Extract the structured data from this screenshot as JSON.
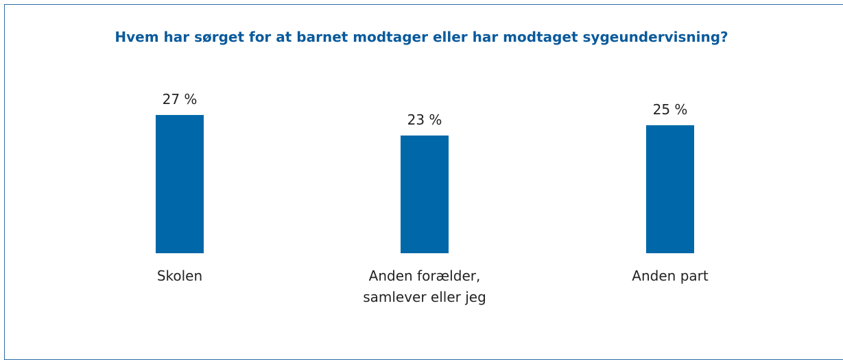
{
  "chart_data": {
    "type": "bar",
    "title": "Hvem har sørget for at barnet modtager eller har modtaget sygeundervisning?",
    "categories": [
      "Skolen",
      "Anden forælder, samlever eller jeg",
      "Anden part"
    ],
    "values": [
      27,
      23,
      25
    ],
    "value_labels": [
      "27 %",
      "23 %",
      "25 %"
    ],
    "color": "#0068a8"
  }
}
